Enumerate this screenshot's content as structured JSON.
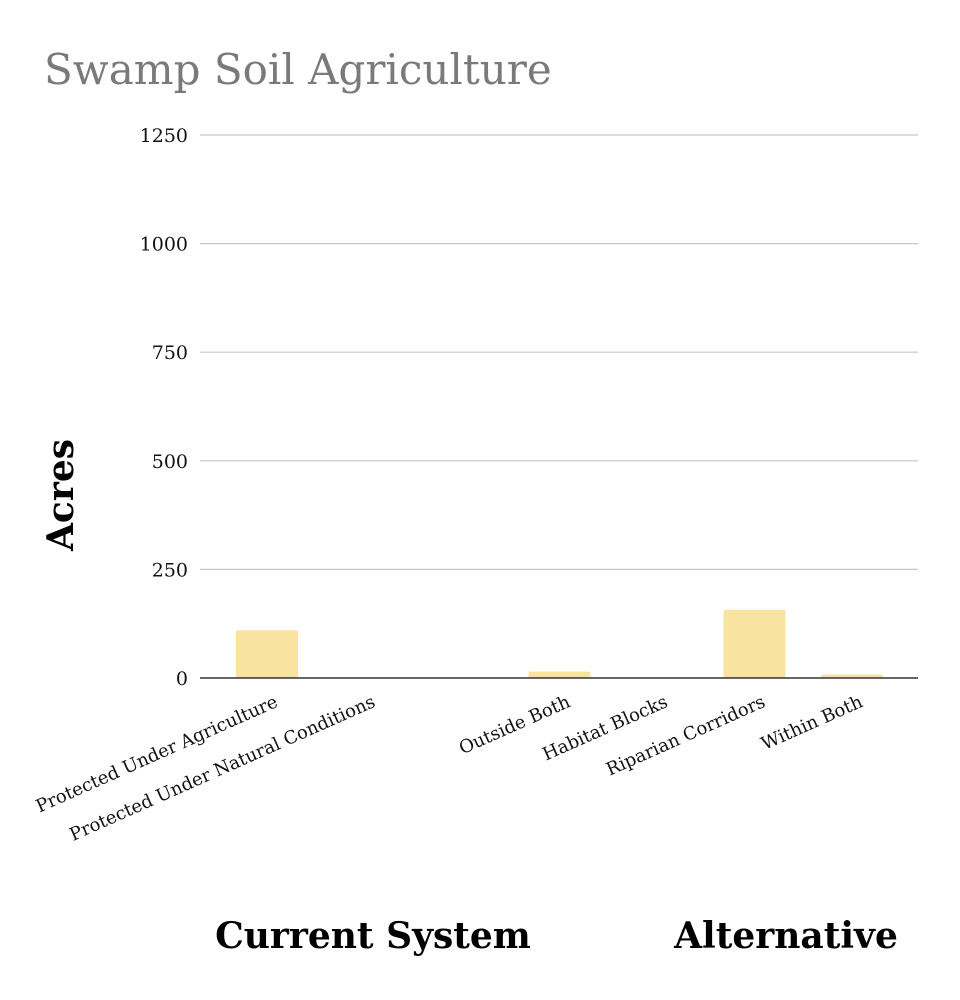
{
  "chart_data": {
    "type": "bar",
    "title": "Swamp Soil Agriculture",
    "ylabel": "Acres",
    "xlabel": "",
    "ylim": [
      0,
      1250
    ],
    "yticks": [
      0,
      250,
      500,
      750,
      1000,
      1250
    ],
    "grid": true,
    "legend": "none",
    "bar_color": "#f8e3a0",
    "categories": [
      "Protected Under Agriculture",
      "Protected Under Natural Conditions",
      "Outside Both",
      "Habitat Blocks",
      "Riparian Corridors",
      "Within Both"
    ],
    "values": [
      110,
      0,
      15,
      0,
      157,
      8
    ],
    "groups": [
      {
        "label": "Current System",
        "categories": [
          "Protected Under Agriculture",
          "Protected Under Natural Conditions"
        ]
      },
      {
        "label": "Alternative",
        "categories": [
          "Outside Both",
          "Habitat Blocks",
          "Riparian Corridors",
          "Within Both"
        ]
      }
    ]
  }
}
